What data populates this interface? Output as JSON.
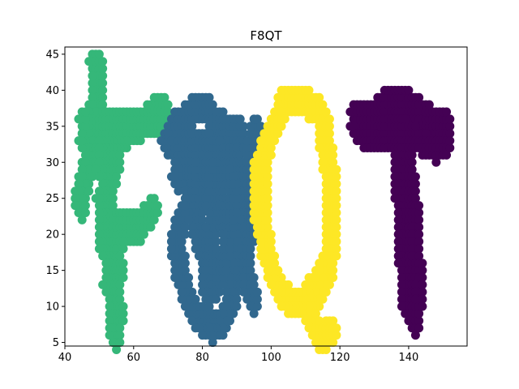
{
  "chart_data": {
    "type": "scatter",
    "title": "F8QT",
    "xlabel": "",
    "ylabel": "",
    "xlim": [
      40,
      157
    ],
    "ylim": [
      4.5,
      46
    ],
    "xticks": [
      40,
      60,
      80,
      100,
      120,
      140
    ],
    "yticks": [
      5,
      10,
      15,
      20,
      25,
      30,
      35,
      40,
      45
    ],
    "grid": false,
    "legend": "none",
    "colormap": "viridis",
    "series": [
      {
        "color": "#35b779",
        "strokes": [
          [
            [
              49,
              44
            ],
            [
              50,
              42
            ],
            [
              50,
              40
            ],
            [
              49,
              38
            ],
            [
              49,
              36
            ],
            [
              48,
              34
            ],
            [
              48,
              32
            ],
            [
              47,
              30
            ],
            [
              46,
              28
            ],
            [
              45,
              26
            ],
            [
              45,
              24
            ]
          ],
          [
            [
              46,
              36
            ],
            [
              48,
              36
            ],
            [
              52,
              36
            ],
            [
              56,
              36
            ],
            [
              60,
              36
            ],
            [
              64,
              36
            ],
            [
              68,
              36
            ],
            [
              69,
              38
            ],
            [
              66,
              37
            ],
            [
              62,
              35
            ],
            [
              58,
              34
            ],
            [
              54,
              34
            ],
            [
              50,
              34
            ],
            [
              46,
              33
            ]
          ],
          [
            [
              52,
              36
            ],
            [
              53,
              32
            ],
            [
              53,
              28
            ],
            [
              53,
              24
            ],
            [
              53,
              20
            ],
            [
              54,
              16
            ],
            [
              54,
              12
            ],
            [
              55,
              9
            ],
            [
              55,
              6
            ]
          ],
          [
            [
              53,
              22
            ],
            [
              56,
              22
            ],
            [
              60,
              22
            ],
            [
              63,
              22
            ],
            [
              66,
              24
            ],
            [
              62,
              21
            ],
            [
              57,
              20
            ],
            [
              54,
              21
            ]
          ],
          [
            [
              50,
              35
            ],
            [
              50,
              31
            ],
            [
              51,
              29
            ],
            [
              52,
              33
            ],
            [
              55,
              30
            ],
            [
              51,
              25
            ],
            [
              52,
              18
            ],
            [
              56,
              15
            ],
            [
              53,
              13
            ],
            [
              56,
              9
            ]
          ]
        ],
        "radius": 1.6
      },
      {
        "color": "#31688e",
        "strokes": [
          [
            [
              72,
              35
            ],
            [
              75,
              36
            ],
            [
              78,
              38
            ],
            [
              81,
              38
            ],
            [
              83,
              36
            ],
            [
              86,
              35
            ],
            [
              89,
              35
            ],
            [
              91,
              34
            ]
          ],
          [
            [
              70,
              33
            ],
            [
              73,
              33
            ],
            [
              77,
              33
            ],
            [
              81,
              33
            ],
            [
              85,
              33
            ],
            [
              89,
              33
            ],
            [
              91,
              33
            ]
          ],
          [
            [
              73,
              32
            ],
            [
              75,
              29
            ],
            [
              76,
              27
            ],
            [
              77,
              25
            ],
            [
              78,
              23
            ],
            [
              79,
              20
            ],
            [
              80,
              18
            ],
            [
              82,
              17
            ],
            [
              83,
              21
            ],
            [
              84,
              25
            ],
            [
              85,
              28
            ],
            [
              87,
              31
            ],
            [
              88,
              33
            ]
          ],
          [
            [
              90,
              30
            ],
            [
              92,
              28
            ],
            [
              93,
              25
            ],
            [
              92,
              22
            ],
            [
              91,
              19
            ],
            [
              90,
              16
            ],
            [
              89,
              13
            ],
            [
              88,
              10
            ],
            [
              86,
              8
            ],
            [
              83,
              7
            ],
            [
              80,
              8
            ],
            [
              78,
              9
            ],
            [
              76,
              11
            ],
            [
              74,
              14
            ],
            [
              73,
              17
            ],
            [
              73,
              20
            ],
            [
              74,
              22
            ],
            [
              76,
              24
            ],
            [
              78,
              25
            ],
            [
              80,
              26
            ],
            [
              82,
              25
            ],
            [
              84,
              24
            ],
            [
              86,
              23
            ],
            [
              88,
              24
            ],
            [
              90,
              25
            ],
            [
              92,
              26
            ],
            [
              94,
              28
            ],
            [
              95,
              30
            ],
            [
              95,
              33
            ],
            [
              96,
              35
            ]
          ],
          [
            [
              80,
              28
            ],
            [
              78,
              30
            ],
            [
              76,
              31
            ],
            [
              74,
              30
            ],
            [
              73,
              28
            ]
          ],
          [
            [
              82,
              15
            ],
            [
              82,
              12
            ],
            [
              84,
              13
            ],
            [
              85,
              15
            ],
            [
              87,
              17
            ],
            [
              88,
              20
            ],
            [
              89,
              23
            ],
            [
              91,
              21
            ],
            [
              92,
              17
            ],
            [
              93,
              14
            ],
            [
              94,
              12
            ],
            [
              95,
              11
            ]
          ],
          [
            [
              93,
              19
            ],
            [
              95,
              22
            ],
            [
              96,
              26
            ],
            [
              96,
              29
            ]
          ],
          [
            [
              80,
              29
            ],
            [
              84,
              29
            ],
            [
              88,
              29
            ],
            [
              91,
              28
            ]
          ]
        ],
        "radius": 1.6
      },
      {
        "color": "#fde725",
        "strokes": [
          [
            [
              104,
              39
            ],
            [
              108,
              39
            ],
            [
              111,
              38
            ],
            [
              114,
              37
            ],
            [
              116,
              35
            ],
            [
              116,
              32
            ],
            [
              117,
              29
            ],
            [
              118,
              26
            ],
            [
              118,
              23
            ],
            [
              118,
              20
            ],
            [
              117,
              17
            ],
            [
              116,
              14
            ],
            [
              114,
              12
            ],
            [
              111,
              11
            ],
            [
              108,
              11
            ],
            [
              105,
              11
            ],
            [
              103,
              12
            ],
            [
              101,
              14
            ],
            [
              99,
              17
            ],
            [
              98,
              20
            ],
            [
              98,
              24
            ],
            [
              98,
              28
            ],
            [
              98,
              31
            ],
            [
              99,
              33
            ],
            [
              101,
              35
            ],
            [
              103,
              37
            ],
            [
              104,
              39
            ]
          ],
          [
            [
              110,
              11
            ],
            [
              111,
              9
            ],
            [
              113,
              7
            ],
            [
              114,
              6
            ],
            [
              116,
              6
            ],
            [
              118,
              7
            ]
          ],
          [
            [
              111,
              12
            ],
            [
              113,
              13
            ],
            [
              115,
              15
            ]
          ],
          [
            [
              97,
              22
            ],
            [
              97,
              26
            ],
            [
              97,
              30
            ]
          ]
        ],
        "radius": 1.6
      },
      {
        "color": "#440154",
        "strokes": [
          [
            [
              125,
              37
            ],
            [
              128,
              37
            ],
            [
              131,
              37
            ],
            [
              134,
              39
            ],
            [
              137,
              39
            ],
            [
              140,
              38
            ],
            [
              143,
              37
            ],
            [
              146,
              36
            ],
            [
              149,
              36
            ],
            [
              151,
              36
            ]
          ],
          [
            [
              125,
              35
            ],
            [
              128,
              35
            ],
            [
              131,
              35
            ],
            [
              134,
              35
            ],
            [
              137,
              35
            ],
            [
              140,
              35
            ],
            [
              143,
              35
            ],
            [
              146,
              35
            ],
            [
              149,
              35
            ],
            [
              151,
              35
            ]
          ],
          [
            [
              127,
              34
            ],
            [
              130,
              34
            ],
            [
              135,
              34
            ],
            [
              140,
              34
            ],
            [
              144,
              33
            ],
            [
              148,
              33
            ],
            [
              151,
              33
            ],
            [
              148,
              32
            ]
          ],
          [
            [
              137,
              36
            ],
            [
              140,
              36
            ]
          ],
          [
            [
              138,
              34
            ],
            [
              138,
              31
            ],
            [
              138,
              28
            ],
            [
              138,
              25
            ],
            [
              139,
              22
            ],
            [
              139,
              19
            ],
            [
              139,
              16
            ],
            [
              140,
              13
            ],
            [
              140,
              10
            ],
            [
              141,
              9
            ],
            [
              142,
              8
            ]
          ],
          [
            [
              140,
              32
            ],
            [
              140,
              28
            ],
            [
              141,
              24
            ],
            [
              142,
              20
            ],
            [
              142,
              16
            ],
            [
              143,
              12
            ],
            [
              142,
              10
            ]
          ]
        ],
        "radius": 1.6
      }
    ]
  }
}
